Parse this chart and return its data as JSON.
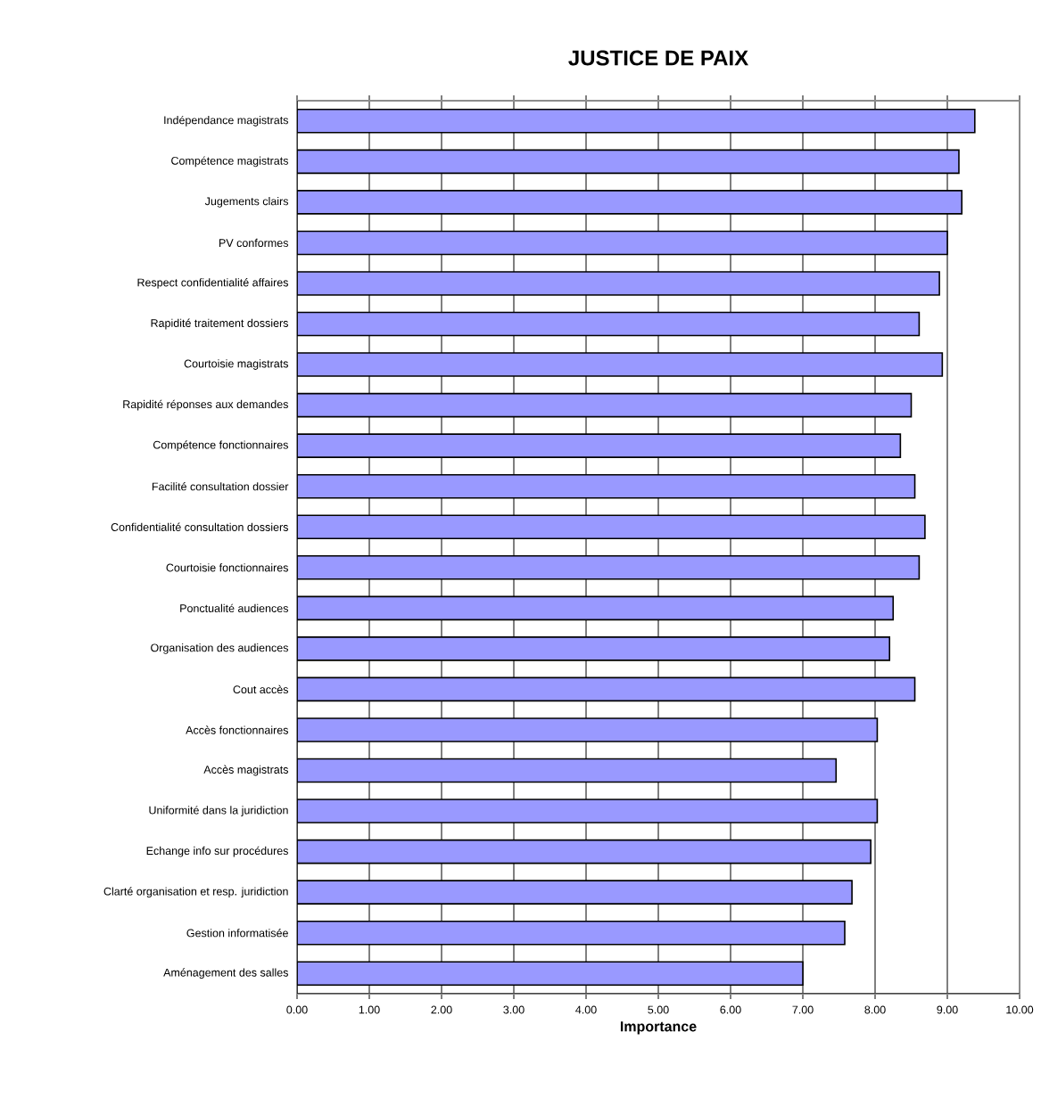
{
  "chart_data": {
    "type": "bar",
    "orientation": "horizontal",
    "title": "JUSTICE DE PAIX",
    "xlabel": "Importance",
    "categories": [
      "Indépendance magistrats",
      "Compétence magistrats",
      "Jugements clairs",
      "PV conformes",
      "Respect confidentialité affaires",
      "Rapidité traitement dossiers",
      "Courtoisie magistrats",
      "Rapidité réponses aux demandes",
      "Compétence fonctionnaires",
      "Facilité consultation dossier",
      "Confidentialité consultation dossiers",
      "Courtoisie fonctionnaires",
      "Ponctualité audiences",
      "Organisation des audiences",
      "Cout accès",
      "Accès fonctionnaires",
      "Accès magistrats",
      "Uniformité dans la juridiction",
      "Echange info sur procédures",
      "Clarté organisation et resp. juridiction",
      "Gestion informatisée",
      "Aménagement des salles"
    ],
    "values": [
      9.38,
      9.16,
      9.2,
      9.0,
      8.89,
      8.61,
      8.93,
      8.5,
      8.35,
      8.55,
      8.69,
      8.61,
      8.25,
      8.2,
      8.55,
      8.03,
      7.46,
      8.03,
      7.94,
      7.68,
      7.58,
      7.0
    ],
    "color": "#9999ff",
    "xlim": [
      0,
      10
    ],
    "xticks": [
      {
        "value": 0,
        "label": "0.00"
      },
      {
        "value": 1,
        "label": "1.00"
      },
      {
        "value": 2,
        "label": "2.00"
      },
      {
        "value": 3,
        "label": "3.00"
      },
      {
        "value": 4,
        "label": "4.00"
      },
      {
        "value": 5,
        "label": "5.00"
      },
      {
        "value": 6,
        "label": "6.00"
      },
      {
        "value": 7,
        "label": "7.00"
      },
      {
        "value": 8,
        "label": "8.00"
      },
      {
        "value": 9,
        "label": "9.00"
      },
      {
        "value": 10,
        "label": "10.00"
      }
    ],
    "grid": "x"
  }
}
